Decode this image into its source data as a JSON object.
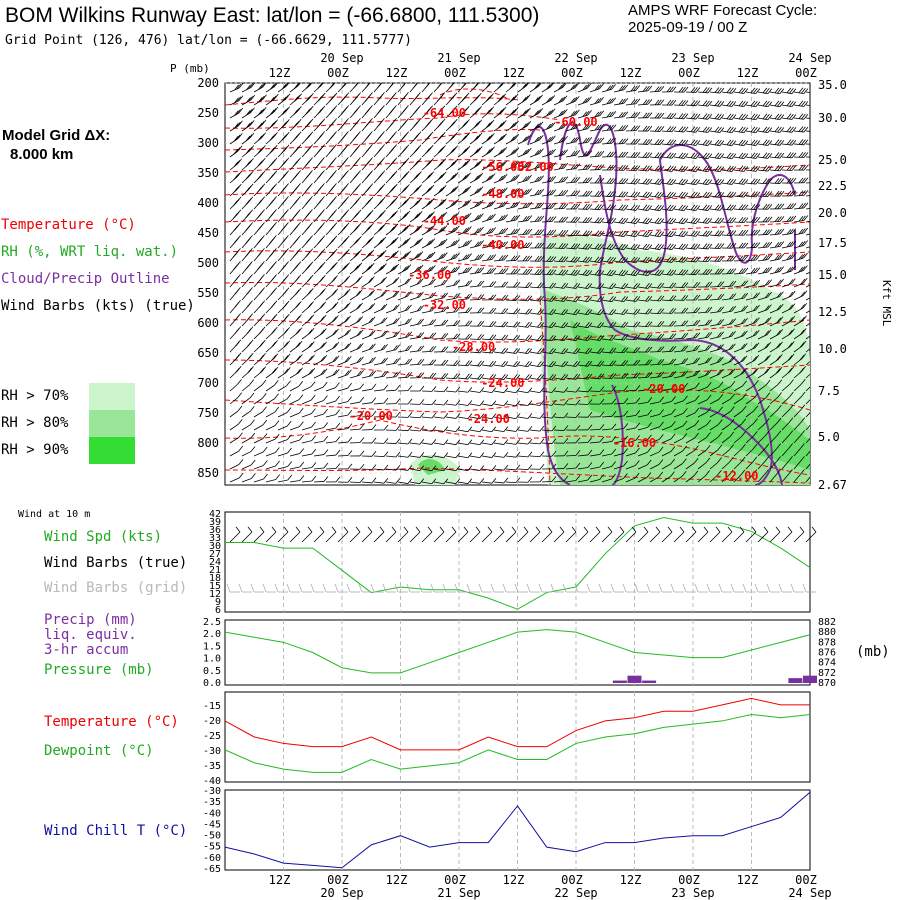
{
  "header": {
    "title": "BOM Wilkins Runway East:  lat/lon = (-66.6800, 111.5300)",
    "cycle_line1": "AMPS WRF Forecast Cycle:",
    "cycle_line2": "2025-09-19 / 00  Z",
    "gridpoint": "Grid Point (126, 476) lat/lon = (-66.6629, 111.5777)"
  },
  "left_legend": {
    "model_grid_line1": "Model Grid ΔX:",
    "model_grid_line2": "8.000 km",
    "temperature": "Temperature (°C)",
    "rh": "RH (%, WRT liq. wat.)",
    "cloud": "Cloud/Precip Outline",
    "wind": "Wind Barbs (kts) (true)",
    "rh70": "RH > 70%",
    "rh80": "RH > 80%",
    "rh90": "RH > 90%",
    "p_label": "P (mb)",
    "kft_label": "Kft MSL"
  },
  "colors": {
    "temp": "#ff0000",
    "cloud": "#7a2fa0",
    "rh70": "#cdf5cd",
    "rh80": "#99e699",
    "rh90": "#33dd33",
    "wind_spd": "#22bb22",
    "grid_barb": "#b0b0b0",
    "precip": "#7a2fa0",
    "dew": "#22bb22",
    "windchill": "#1010a0"
  },
  "time_axis": {
    "top_ticks": [
      "12Z",
      "00Z",
      "12Z",
      "00Z",
      "12Z",
      "00Z",
      "12Z",
      "00Z",
      "12Z",
      "00Z"
    ],
    "date_labels": [
      "20 Sep",
      "21 Sep",
      "22 Sep",
      "23 Sep",
      "24 Sep"
    ],
    "bottom_ticks": [
      "12Z",
      "00Z",
      "12Z",
      "00Z",
      "12Z",
      "00Z",
      "12Z",
      "00Z",
      "12Z",
      "00Z"
    ]
  },
  "chart_data": [
    {
      "type": "heatmap",
      "name": "cross-section",
      "y_left_ticks": [
        "200",
        "250",
        "300",
        "350",
        "400",
        "450",
        "500",
        "550",
        "600",
        "650",
        "700",
        "750",
        "800",
        "850"
      ],
      "y_right_ticks": [
        "35.0",
        "30.0",
        "25.0",
        "22.5",
        "20.0",
        "17.5",
        "15.0",
        "12.5",
        "10.0",
        "7.5",
        "5.0",
        "2.67"
      ],
      "temperature_contours": [
        {
          "label": "-64.00",
          "x": "20 Sep 21Z",
          "y": 250
        },
        {
          "label": "-60.00",
          "x": "22 Sep 00Z",
          "y": 265
        },
        {
          "label": "-56.00",
          "x": "21 Sep 09Z",
          "y": 340
        },
        {
          "label": "-52.00",
          "x": "21 Sep 15Z",
          "y": 340
        },
        {
          "label": "-48.00",
          "x": "21 Sep 09Z",
          "y": 385
        },
        {
          "label": "-44.00",
          "x": "20 Sep 21Z",
          "y": 430
        },
        {
          "label": "-40.00",
          "x": "21 Sep 09Z",
          "y": 470
        },
        {
          "label": "-36.00",
          "x": "20 Sep 18Z",
          "y": 520
        },
        {
          "label": "-32.00",
          "x": "20 Sep 21Z",
          "y": 570
        },
        {
          "label": "-28.00",
          "x": "21 Sep 03Z",
          "y": 640
        },
        {
          "label": "-24.00",
          "x": "21 Sep 09Z",
          "y": 700
        },
        {
          "label": "-24.00",
          "x": "21 Sep 06Z",
          "y": 760
        },
        {
          "label": "-20.00",
          "x": "20 Sep 06Z",
          "y": 755
        },
        {
          "label": "-20.00",
          "x": "22 Sep 18Z",
          "y": 710
        },
        {
          "label": "-16.00",
          "x": "22 Sep 12Z",
          "y": 800
        },
        {
          "label": "-12.00",
          "x": "23 Sep 09Z",
          "y": 855
        }
      ]
    },
    {
      "type": "line",
      "name": "wind-10m",
      "title": "Wind at 10 m",
      "labels": {
        "spd": "Wind Spd (kts)",
        "barbs_true": "Wind Barbs (true)",
        "barbs_grid": "Wind Barbs (grid)"
      },
      "y_ticks": [
        "42",
        "39",
        "36",
        "33",
        "30",
        "27",
        "24",
        "21",
        "18",
        "15",
        "12",
        "9",
        "6"
      ],
      "ylim": [
        6,
        42
      ],
      "x_hours": [
        0,
        6,
        12,
        18,
        24,
        30,
        36,
        42,
        48,
        54,
        60,
        66,
        72,
        78,
        84,
        90,
        96,
        102,
        108,
        114,
        120
      ],
      "values": [
        31,
        31,
        29,
        29,
        21,
        13,
        15,
        14,
        14,
        11,
        7,
        13,
        15,
        27,
        37,
        40,
        38,
        38,
        35,
        29,
        22
      ]
    },
    {
      "type": "line",
      "name": "precip-pressure",
      "labels": {
        "precip": "Precip (mm)",
        "liq": "liq. equiv.",
        "accum": "3-hr accum",
        "pressure": "Pressure (mb)",
        "mb": "(mb)"
      },
      "y_left_ticks": [
        "2.5",
        "2.0",
        "1.5",
        "1.0",
        "0.5",
        "0.0"
      ],
      "y_right_ticks": [
        "882",
        "880",
        "878",
        "876",
        "874",
        "872",
        "870"
      ],
      "precip_mm": [
        {
          "hour": 81,
          "value": 0.1
        },
        {
          "hour": 84,
          "value": 0.3
        },
        {
          "hour": 87,
          "value": 0.1
        },
        {
          "hour": 117,
          "value": 0.2
        },
        {
          "hour": 120,
          "value": 0.3
        }
      ],
      "x_hours": [
        0,
        6,
        12,
        18,
        24,
        30,
        36,
        42,
        48,
        54,
        60,
        66,
        72,
        78,
        84,
        90,
        96,
        102,
        108,
        114,
        120
      ],
      "pressure_mb": [
        880,
        879,
        878,
        876,
        873,
        872,
        872,
        874,
        876,
        878,
        880,
        880.5,
        880,
        878,
        876,
        875.5,
        875,
        875,
        876.5,
        878,
        879.5
      ]
    },
    {
      "type": "line",
      "name": "temp-dewpoint",
      "labels": {
        "temp": "Temperature (°C)",
        "dew": "Dewpoint (°C)"
      },
      "y_ticks": [
        "-15",
        "-20",
        "-25",
        "-30",
        "-35",
        "-40"
      ],
      "ylim": [
        -40,
        -12
      ],
      "x_hours": [
        0,
        6,
        12,
        18,
        24,
        30,
        36,
        42,
        48,
        54,
        60,
        66,
        72,
        78,
        84,
        90,
        96,
        102,
        108,
        114,
        120
      ],
      "temperature": [
        -21,
        -26,
        -28,
        -29,
        -29,
        -26,
        -30,
        -30,
        -30,
        -26,
        -29,
        -29,
        -24,
        -21,
        -20,
        -18,
        -18,
        -16,
        -14,
        -16,
        -16
      ],
      "dewpoint": [
        -30,
        -34,
        -36,
        -37,
        -37,
        -33,
        -36,
        -35,
        -34,
        -30,
        -33,
        -33,
        -28,
        -26,
        -25,
        -23,
        -22,
        -21,
        -19,
        -20,
        -19
      ]
    },
    {
      "type": "line",
      "name": "wind-chill",
      "labels": {
        "windchill": "Wind Chill T (°C)"
      },
      "y_ticks": [
        "-30",
        "-35",
        "-40",
        "-45",
        "-50",
        "-55",
        "-60",
        "-65"
      ],
      "ylim": [
        -65,
        -30
      ],
      "x_hours": [
        0,
        6,
        12,
        18,
        24,
        30,
        36,
        42,
        48,
        54,
        60,
        66,
        72,
        78,
        84,
        90,
        96,
        102,
        108,
        114,
        120
      ],
      "values": [
        -55,
        -58,
        -62,
        -63,
        -64,
        -54,
        -50,
        -55,
        -53,
        -53,
        -37,
        -55,
        -57,
        -53,
        -53,
        -51,
        -50,
        -50,
        -46,
        -42,
        -31
      ]
    }
  ]
}
